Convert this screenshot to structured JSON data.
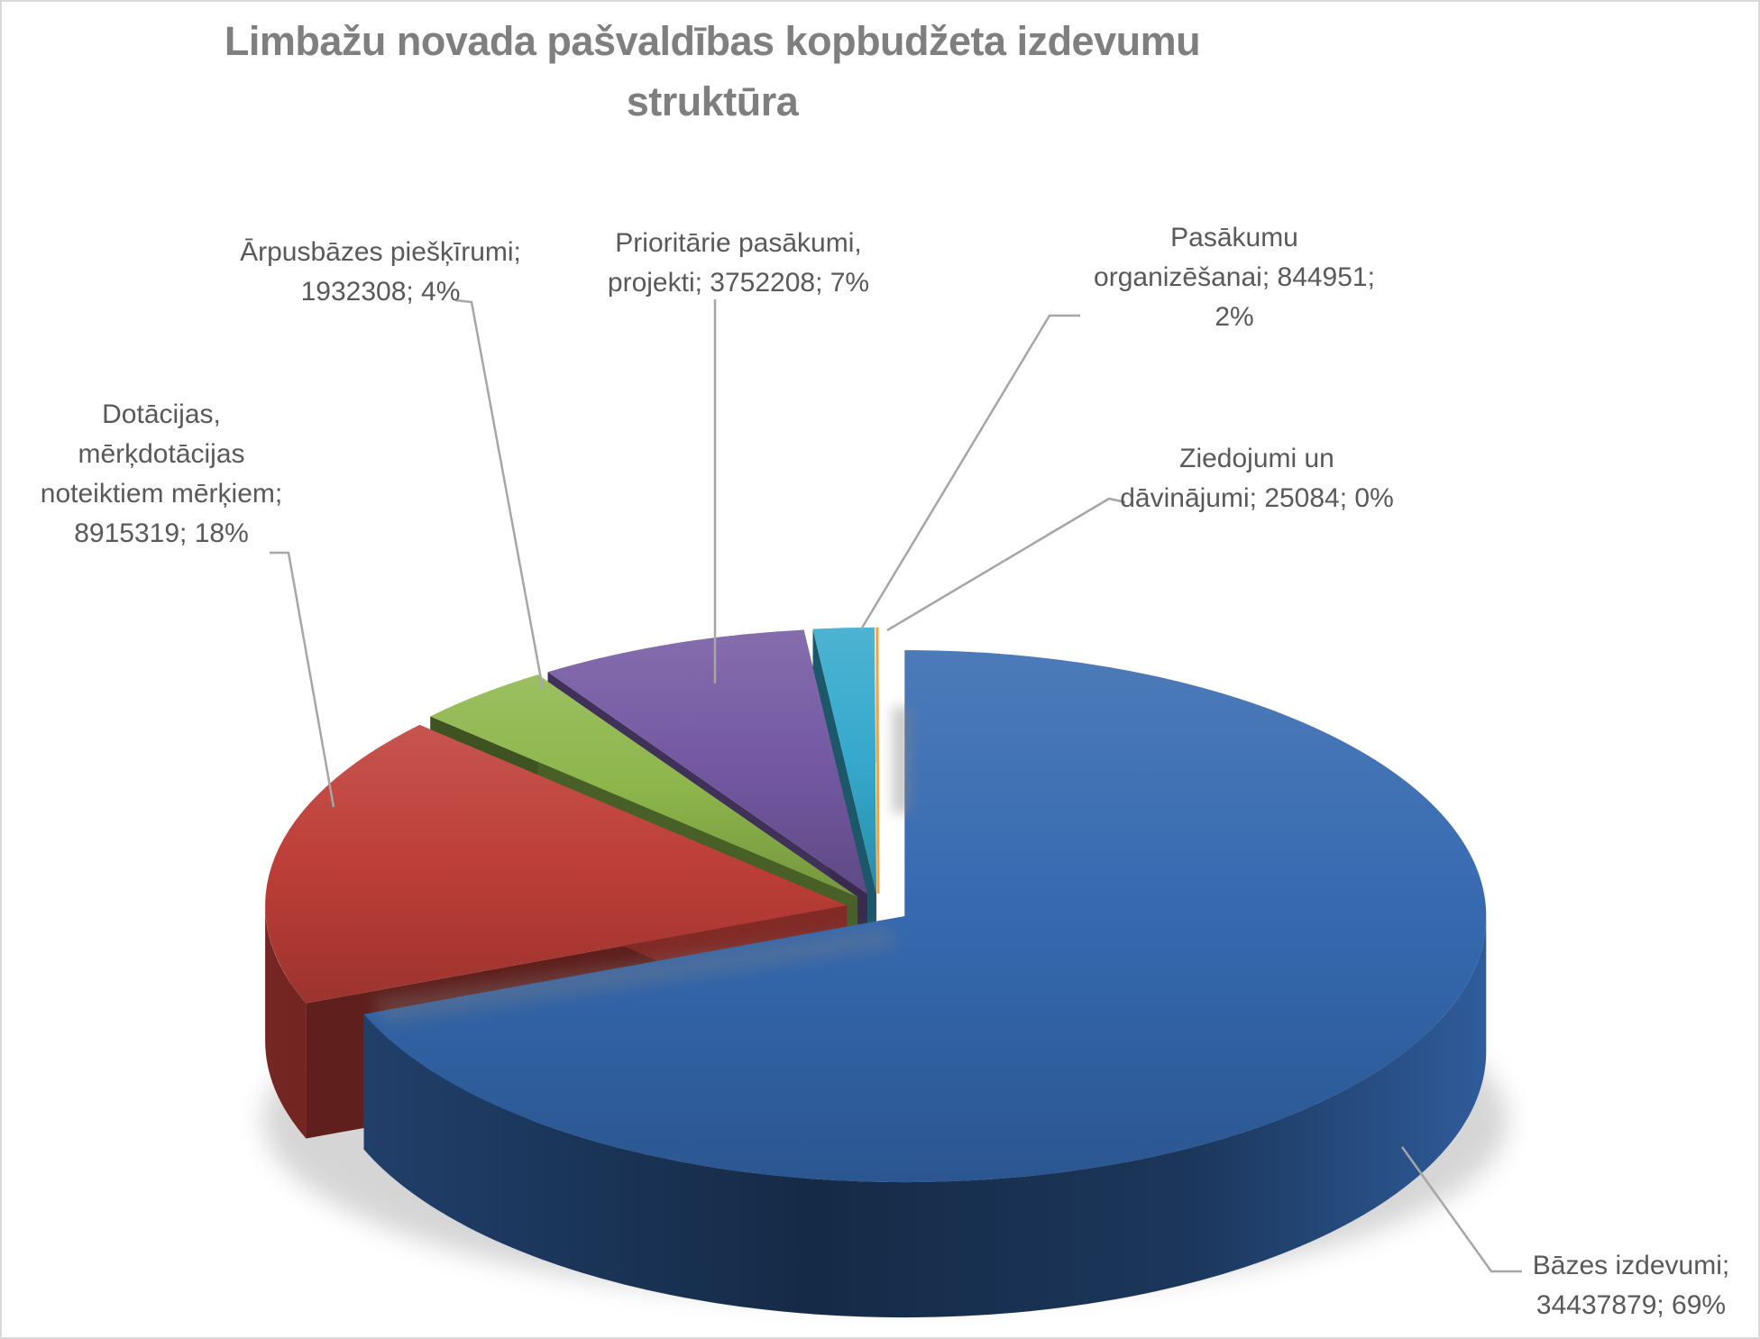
{
  "title": "Limbažu novada pašvaldības kopbudžeta izdevumu struktūra",
  "chart_data": {
    "type": "pie",
    "style": "3d-exploded-pie",
    "title": "Limbažu novada pašvaldības kopbudžeta izdevumu struktūra",
    "legend": "none",
    "label_format": "name; value; percent",
    "start_angle_deg": 0,
    "direction": "clockwise",
    "total": 49907749,
    "leader_line_color": "#a6a6a6",
    "label_text_color": "#595959",
    "title_color": "#7f7f7f",
    "slices": [
      {
        "name": "Bāzes izdevumi",
        "value": 34437879,
        "pct": "69%",
        "color": "#3569B0",
        "label_lines": [
          "Bāzes izdevumi;",
          "34437879; 69%"
        ]
      },
      {
        "name": "Dotācijas, mērķdotācijas noteiktiem mērķiem",
        "value": 8915319,
        "pct": "18%",
        "color": "#BE3E38",
        "label_lines": [
          "Dotācijas,",
          "mērķdotācijas",
          "noteiktiem mērķiem;",
          "8915319; 18%"
        ]
      },
      {
        "name": "Ārpusbāzes piešķīrumi",
        "value": 1932308,
        "pct": "4%",
        "color": "#8DB64C",
        "label_lines": [
          "Ārpusbāzes piešķīrumi;",
          "1932308; 4%"
        ]
      },
      {
        "name": "Prioritārie pasākumi, projekti",
        "value": 3752208,
        "pct": "7%",
        "color": "#7459A2",
        "label_lines": [
          "Prioritārie pasākumi,",
          "projekti; 3752208; 7%"
        ]
      },
      {
        "name": "Pasākumu organizēšanai",
        "value": 844951,
        "pct": "2%",
        "color": "#35A9CC",
        "label_lines": [
          "Pasākumu",
          "organizēšanai; 844951;",
          "2%"
        ]
      },
      {
        "name": "Ziedojumi un dāvinājumi",
        "value": 25084,
        "pct": "0%",
        "color": "#F2A241",
        "label_lines": [
          "Ziedojumi un",
          "dāvinājumi; 25084; 0%"
        ]
      }
    ]
  }
}
